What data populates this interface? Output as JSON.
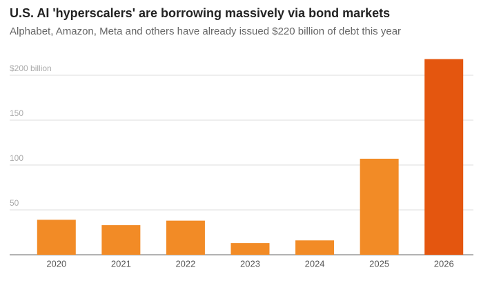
{
  "chart_data": {
    "type": "bar",
    "title": "U.S. AI 'hyperscalers' are borrowing massively via bond markets",
    "subtitle": "Alphabet, Amazon, Meta and others have already issued $220 billion of debt this year",
    "categories": [
      "2020",
      "2021",
      "2022",
      "2023",
      "2024",
      "2025",
      "2026"
    ],
    "values": [
      39,
      33,
      38,
      13,
      16,
      107,
      218
    ],
    "colors": [
      "#f28b26",
      "#f28b26",
      "#f28b26",
      "#f28b26",
      "#f28b26",
      "#f28b26",
      "#e4560f"
    ],
    "ylim": [
      0,
      230
    ],
    "yticks": [
      50,
      100,
      150,
      {
        "value": 200,
        "label": "$200 billion"
      }
    ],
    "grid": true
  }
}
